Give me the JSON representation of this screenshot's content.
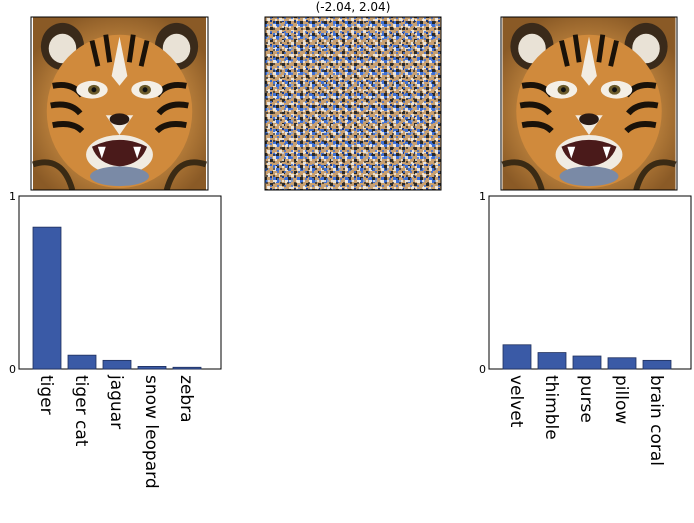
{
  "figure": {
    "images": [
      {
        "role": "original",
        "subject": "tiger face photo"
      },
      {
        "role": "perturbation",
        "subject": "adversarial noise pattern",
        "range_label": "(-2.04, 2.04)"
      },
      {
        "role": "adversarial",
        "subject": "tiger face photo"
      }
    ]
  },
  "colors": {
    "bar": "#3a5aa6",
    "bar_edge": "#1f2f5c",
    "tiger_orange": "#c98a3a",
    "noise_blue": "#3d6fd6",
    "noise_tan": "#c9a070",
    "noise_dark": "#2a2a2a"
  },
  "chart_data": [
    {
      "type": "bar",
      "categories": [
        "tiger",
        "tiger cat",
        "jaguar",
        "snow leopard",
        "zebra"
      ],
      "values": [
        0.82,
        0.08,
        0.05,
        0.015,
        0.01
      ],
      "ylim": [
        0,
        1
      ],
      "yticks": [
        "0",
        "1"
      ],
      "grid": false
    },
    {
      "type": "bar",
      "categories": [
        "velvet",
        "thimble",
        "purse",
        "pillow",
        "brain coral"
      ],
      "values": [
        0.14,
        0.095,
        0.075,
        0.065,
        0.05
      ],
      "ylim": [
        0,
        1
      ],
      "yticks": [
        "0",
        "1"
      ],
      "grid": false
    }
  ]
}
